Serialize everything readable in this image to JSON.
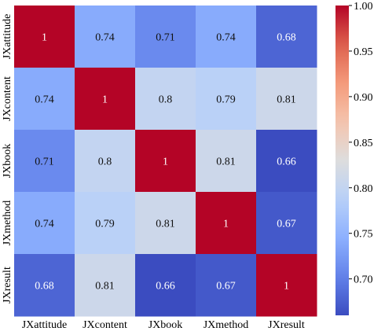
{
  "chart_data": {
    "type": "heatmap",
    "rows": [
      "JXattitude",
      "JXcontent",
      "JXbook",
      "JXmethod",
      "JXresult"
    ],
    "columns": [
      "JXattitude",
      "JXcontent",
      "JXbook",
      "JXmethod",
      "JXresult"
    ],
    "values": [
      [
        1,
        0.74,
        0.71,
        0.74,
        0.68
      ],
      [
        0.74,
        1,
        0.8,
        0.79,
        0.81
      ],
      [
        0.71,
        0.8,
        1,
        0.81,
        0.66
      ],
      [
        0.74,
        0.79,
        0.81,
        1,
        0.67
      ],
      [
        0.68,
        0.81,
        0.66,
        0.67,
        1
      ]
    ],
    "cell_labels": [
      [
        "1",
        "0.74",
        "0.71",
        "0.74",
        "0.68"
      ],
      [
        "0.74",
        "1",
        "0.8",
        "0.79",
        "0.81"
      ],
      [
        "0.71",
        "0.8",
        "1",
        "0.81",
        "0.66"
      ],
      [
        "0.74",
        "0.79",
        "0.81",
        "1",
        "0.67"
      ],
      [
        "0.68",
        "0.81",
        "0.66",
        "0.67",
        "1"
      ]
    ],
    "colormap": "coolwarm",
    "colorbar": {
      "vmin": 0.66,
      "vmax": 1.0,
      "ticks": [
        0.7,
        0.75,
        0.8,
        0.85,
        0.9,
        0.95,
        1.0
      ],
      "tick_labels": [
        "0.70",
        "0.75",
        "0.80",
        "0.85",
        "0.90",
        "0.95",
        "1.00"
      ]
    },
    "title": "",
    "xlabel": "",
    "ylabel": ""
  }
}
